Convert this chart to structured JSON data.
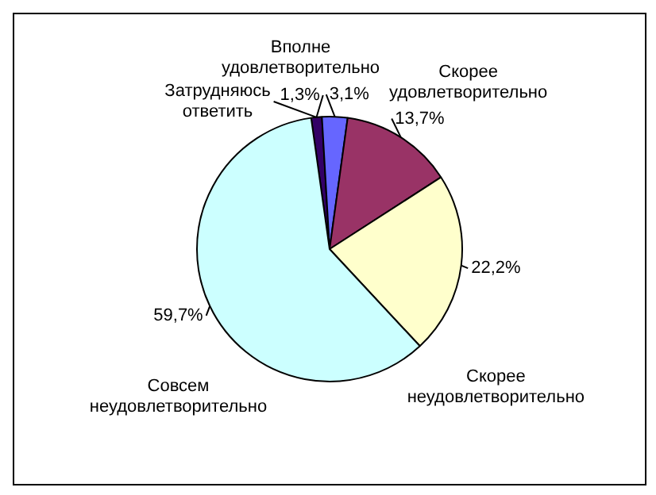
{
  "chart_data": {
    "type": "pie",
    "categories": [
      "Затрудняюсь ответить",
      "Вполне удовлетворительно",
      "Скорее удовлетворительно",
      "Скорее неудовлетворительно",
      "Совсем неудовлетворительно"
    ],
    "values": [
      1.3,
      3.1,
      13.7,
      22.2,
      59.7
    ],
    "colors": [
      "#330066",
      "#6666ff",
      "#993366",
      "#ffffcc",
      "#ccffff"
    ],
    "value_labels": [
      "1,3%",
      "3,1%",
      "13,7%",
      "22,2%",
      "59,7%"
    ],
    "legend": false
  }
}
